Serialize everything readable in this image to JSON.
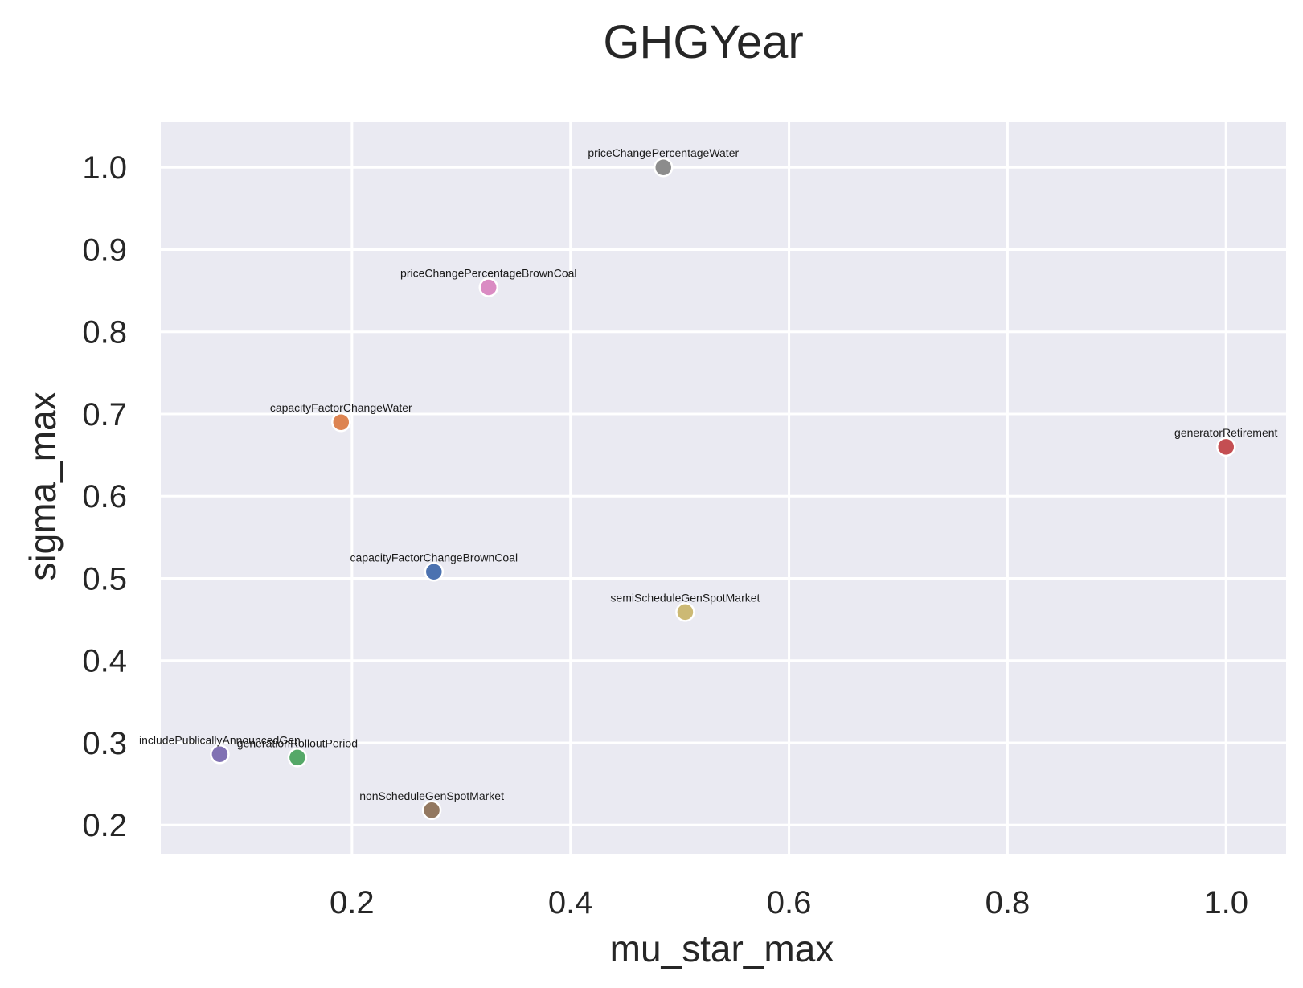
{
  "chart_data": {
    "type": "scatter",
    "title": "GHGYear",
    "xlabel": "mu_star_max",
    "ylabel": "sigma_max",
    "xlim": [
      0.025,
      1.055
    ],
    "ylim": [
      0.165,
      1.055
    ],
    "xticks": [
      0.2,
      0.4,
      0.6,
      0.8,
      1.0
    ],
    "xtick_labels": [
      "0.2",
      "0.4",
      "0.6",
      "0.8",
      "1.0"
    ],
    "yticks": [
      0.2,
      0.3,
      0.4,
      0.5,
      0.6,
      0.7,
      0.8,
      0.9,
      1.0
    ],
    "ytick_labels": [
      "0.2",
      "0.3",
      "0.4",
      "0.5",
      "0.6",
      "0.7",
      "0.8",
      "0.9",
      "1.0"
    ],
    "grid": true,
    "legend": "none",
    "points": [
      {
        "label": "capacityFactorChangeBrownCoal",
        "x": 0.275,
        "y": 0.508,
        "color": "#4c72b0"
      },
      {
        "label": "capacityFactorChangeWater",
        "x": 0.19,
        "y": 0.69,
        "color": "#dd8452"
      },
      {
        "label": "generationRolloutPeriod",
        "x": 0.15,
        "y": 0.282,
        "color": "#55a868"
      },
      {
        "label": "generatorRetirement",
        "x": 1.0,
        "y": 0.66,
        "color": "#c44e52"
      },
      {
        "label": "includePublicallyAnnouncedGen",
        "x": 0.079,
        "y": 0.286,
        "color": "#8172b3"
      },
      {
        "label": "nonScheduleGenSpotMarket",
        "x": 0.273,
        "y": 0.218,
        "color": "#937860"
      },
      {
        "label": "priceChangePercentageBrownCoal",
        "x": 0.325,
        "y": 0.854,
        "color": "#da8bc3"
      },
      {
        "label": "priceChangePercentageWater",
        "x": 0.485,
        "y": 1.0,
        "color": "#8c8c8c"
      },
      {
        "label": "semiScheduleGenSpotMarket",
        "x": 0.505,
        "y": 0.459,
        "color": "#ccb974"
      }
    ]
  }
}
